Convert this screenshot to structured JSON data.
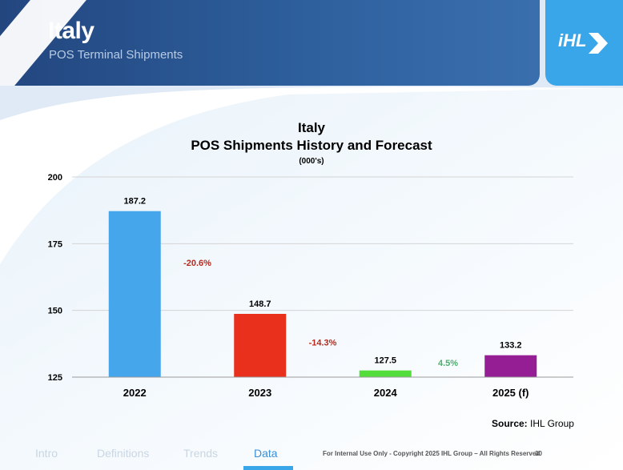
{
  "header": {
    "title": "Italy",
    "subtitle": "POS Terminal Shipments",
    "logo": "iHL"
  },
  "chart_data": {
    "type": "bar",
    "title": "Italy",
    "subtitle": "POS Shipments History and Forecast",
    "unit_label": "(000's)",
    "categories": [
      "2022",
      "2023",
      "2024",
      "2025 (f)"
    ],
    "values": [
      187.2,
      148.7,
      127.5,
      133.2
    ],
    "value_labels": [
      "187.2",
      "148.7",
      "127.5",
      "133.2"
    ],
    "bar_colors": [
      "#46a6ec",
      "#e9301d",
      "#52dd3a",
      "#951e94"
    ],
    "yticks": [
      "200",
      "175",
      "150",
      "125"
    ],
    "ylim": [
      125,
      200
    ],
    "grid": true,
    "changes": [
      {
        "label": "-20.6%",
        "color": "#b52a1d"
      },
      {
        "label": "-14.3%",
        "color": "#b52a1d"
      },
      {
        "label": "4.5%",
        "color": "#4caf6e"
      }
    ]
  },
  "source": {
    "prefix": "Source:",
    "text": " IHL Group"
  },
  "footer": {
    "nav": [
      "Intro",
      "Definitions",
      "Trends",
      "Data"
    ],
    "active": "Data",
    "copyright": "For Internal Use Only - Copyright 2025 IHL Group – All Rights Reserved",
    "page": "30"
  }
}
